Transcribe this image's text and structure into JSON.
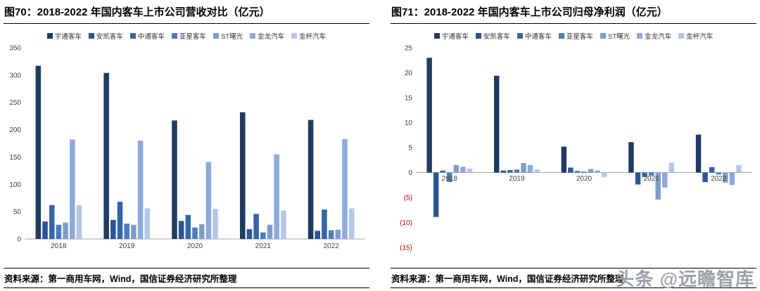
{
  "watermark": "头条 @远瞻智库",
  "figures": [
    {
      "title": "图70：2018-2022 年国内客车上市公司营收对比（亿元）",
      "source": "资料来源：第一商用车网，Wind，国信证券经济研究所整理"
    },
    {
      "title": "图71：2018-2022 年国内客车上市公司归母净利润（亿元）",
      "source": "资料来源：第一商用车网，Wind，国信证券经济研究所整理"
    }
  ],
  "chart_data": [
    {
      "type": "bar",
      "title": "图70：2018-2022 年国内客车上市公司营收对比（亿元）",
      "categories": [
        "2018",
        "2019",
        "2020",
        "2021",
        "2022"
      ],
      "series": [
        {
          "name": "宇通客车",
          "color": "#1F3B63",
          "values": [
            317,
            304,
            217,
            232,
            218
          ]
        },
        {
          "name": "安凯客车",
          "color": "#2A5599",
          "values": [
            32,
            35,
            33,
            18,
            15
          ]
        },
        {
          "name": "中通客车",
          "color": "#3366A6",
          "values": [
            62,
            68,
            44,
            46,
            54
          ]
        },
        {
          "name": "亚星客车",
          "color": "#4A7EBB",
          "values": [
            26,
            28,
            21,
            12,
            16
          ]
        },
        {
          "name": "ST曙光",
          "color": "#7F9DC9",
          "values": [
            30,
            26,
            27,
            26,
            17
          ]
        },
        {
          "name": "金龙汽车",
          "color": "#8EA9DB",
          "values": [
            182,
            180,
            141,
            155,
            183
          ]
        },
        {
          "name": "金杯汽车",
          "color": "#B4C7E7",
          "values": [
            62,
            56,
            55,
            52,
            56
          ]
        }
      ],
      "ylim": [
        0,
        350
      ],
      "ytick_step": 50,
      "grid": false,
      "legend_position": "top",
      "xlabel": "",
      "ylabel": "",
      "negative_tick_color": "#C00000"
    },
    {
      "type": "bar",
      "title": "图71：2018-2022 年国内客车上市公司归母净利润（亿元）",
      "categories": [
        "2018",
        "2019",
        "2020",
        "2021",
        "2022"
      ],
      "series": [
        {
          "name": "宇通客车",
          "color": "#1F3B63",
          "values": [
            23.0,
            19.4,
            5.2,
            6.1,
            7.6
          ]
        },
        {
          "name": "安凯客车",
          "color": "#2A5599",
          "values": [
            -8.9,
            0.4,
            1.0,
            -2.4,
            -1.9
          ]
        },
        {
          "name": "中通客车",
          "color": "#3366A6",
          "values": [
            0.4,
            0.5,
            0.3,
            -0.9,
            1.1
          ]
        },
        {
          "name": "亚星客车",
          "color": "#4A7EBB",
          "values": [
            -1.9,
            0.6,
            0.2,
            -0.6,
            -0.4
          ]
        },
        {
          "name": "ST曙光",
          "color": "#7F9DC9",
          "values": [
            1.5,
            1.9,
            0.7,
            -5.4,
            -2.0
          ]
        },
        {
          "name": "金龙汽车",
          "color": "#8EA9DB",
          "values": [
            1.2,
            1.5,
            0.4,
            -3.0,
            -2.5
          ]
        },
        {
          "name": "金杯汽车",
          "color": "#B4C7E7",
          "values": [
            0.8,
            0.6,
            -0.9,
            2.0,
            1.5
          ]
        }
      ],
      "ylim": [
        -15,
        25
      ],
      "ytick_step": 5,
      "grid": false,
      "legend_position": "top",
      "xlabel": "",
      "ylabel": "",
      "negative_tick_color": "#C00000"
    }
  ]
}
